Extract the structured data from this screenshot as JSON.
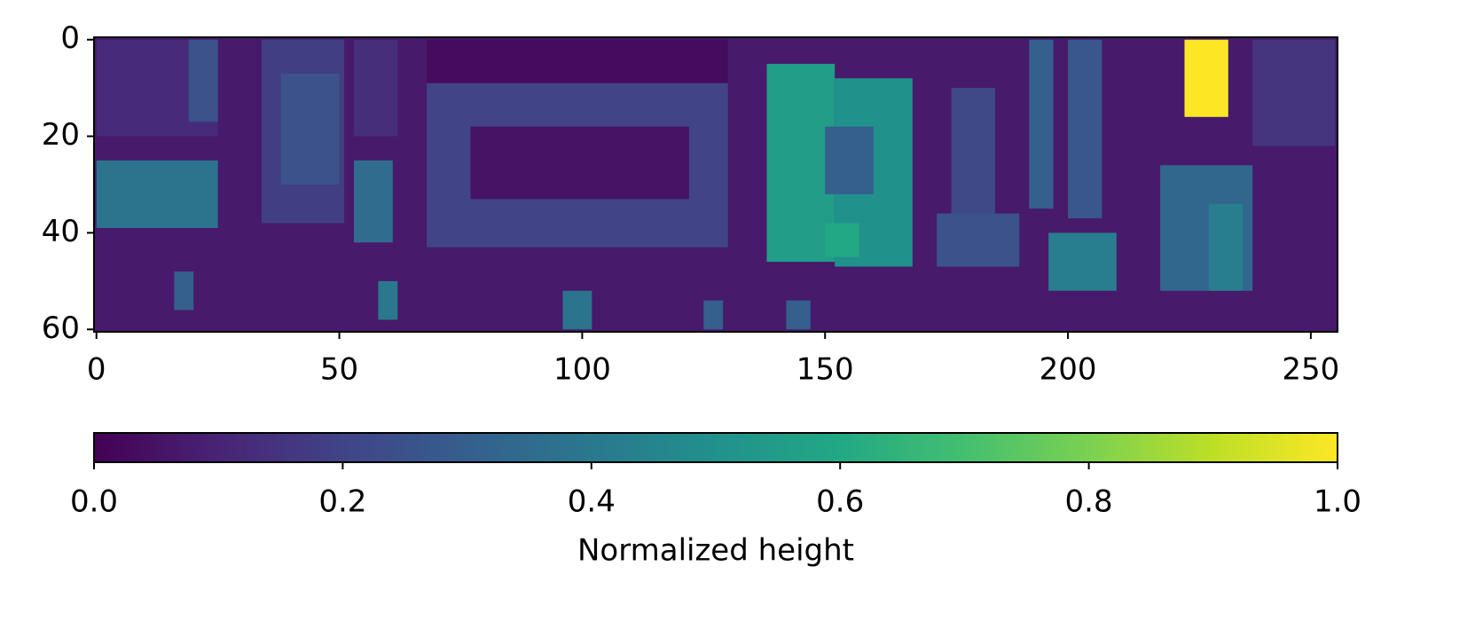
{
  "chart_data": {
    "type": "heatmap",
    "colormap": "viridis",
    "xlim": [
      -0.5,
      255.5
    ],
    "ylim": [
      60.5,
      -0.5
    ],
    "xticks": [
      0,
      50,
      100,
      150,
      200,
      250
    ],
    "yticks": [
      0,
      20,
      40,
      60
    ],
    "regions": [
      {
        "x": [
          -0.5,
          255.5
        ],
        "y": [
          -0.5,
          60.5
        ],
        "value": 0.07
      },
      {
        "x": [
          0,
          25
        ],
        "y": [
          0,
          20
        ],
        "value": 0.12
      },
      {
        "x": [
          19,
          25
        ],
        "y": [
          0,
          17
        ],
        "value": 0.25
      },
      {
        "x": [
          0,
          25
        ],
        "y": [
          25,
          39
        ],
        "value": 0.38
      },
      {
        "x": [
          34,
          51
        ],
        "y": [
          0,
          38
        ],
        "value": 0.18
      },
      {
        "x": [
          38,
          50
        ],
        "y": [
          7,
          30
        ],
        "value": 0.25
      },
      {
        "x": [
          53,
          62
        ],
        "y": [
          0,
          20
        ],
        "value": 0.13
      },
      {
        "x": [
          53,
          61
        ],
        "y": [
          25,
          42
        ],
        "value": 0.35
      },
      {
        "x": [
          68,
          130
        ],
        "y": [
          0,
          9
        ],
        "value": 0.03
      },
      {
        "x": [
          68,
          130
        ],
        "y": [
          9,
          43
        ],
        "value": 0.2
      },
      {
        "x": [
          77,
          122
        ],
        "y": [
          18,
          33
        ],
        "value": 0.05
      },
      {
        "x": [
          138,
          152
        ],
        "y": [
          5,
          46
        ],
        "value": 0.55
      },
      {
        "x": [
          152,
          168
        ],
        "y": [
          8,
          47
        ],
        "value": 0.5
      },
      {
        "x": [
          150,
          160
        ],
        "y": [
          18,
          32
        ],
        "value": 0.3
      },
      {
        "x": [
          150,
          157
        ],
        "y": [
          38,
          45
        ],
        "value": 0.6
      },
      {
        "x": [
          176,
          185
        ],
        "y": [
          10,
          47
        ],
        "value": 0.22
      },
      {
        "x": [
          173,
          190
        ],
        "y": [
          36,
          47
        ],
        "value": 0.25
      },
      {
        "x": [
          192,
          197
        ],
        "y": [
          0,
          35
        ],
        "value": 0.3
      },
      {
        "x": [
          200,
          207
        ],
        "y": [
          0,
          37
        ],
        "value": 0.27
      },
      {
        "x": [
          196,
          210
        ],
        "y": [
          40,
          52
        ],
        "value": 0.42
      },
      {
        "x": [
          219,
          238
        ],
        "y": [
          26,
          52
        ],
        "value": 0.33
      },
      {
        "x": [
          229,
          236
        ],
        "y": [
          34,
          52
        ],
        "value": 0.42
      },
      {
        "x": [
          224,
          233
        ],
        "y": [
          0,
          16
        ],
        "value": 1.0
      },
      {
        "x": [
          238,
          255
        ],
        "y": [
          0,
          22
        ],
        "value": 0.15
      },
      {
        "x": [
          58,
          62
        ],
        "y": [
          50,
          58
        ],
        "value": 0.4
      },
      {
        "x": [
          96,
          102
        ],
        "y": [
          52,
          60
        ],
        "value": 0.38
      },
      {
        "x": [
          142,
          147
        ],
        "y": [
          54,
          60
        ],
        "value": 0.3
      },
      {
        "x": [
          125,
          129
        ],
        "y": [
          54,
          60
        ],
        "value": 0.3
      },
      {
        "x": [
          16,
          20
        ],
        "y": [
          48,
          56
        ],
        "value": 0.3
      }
    ],
    "colorbar": {
      "label": "Normalized height",
      "clim": [
        0,
        1
      ],
      "ticks": [
        {
          "value": 0,
          "label": "0.0"
        },
        {
          "value": 0.2,
          "label": "0.2"
        },
        {
          "value": 0.4,
          "label": "0.4"
        },
        {
          "value": 0.6,
          "label": "0.6"
        },
        {
          "value": 0.8,
          "label": "0.8"
        },
        {
          "value": 1,
          "label": "1.0"
        }
      ]
    }
  }
}
